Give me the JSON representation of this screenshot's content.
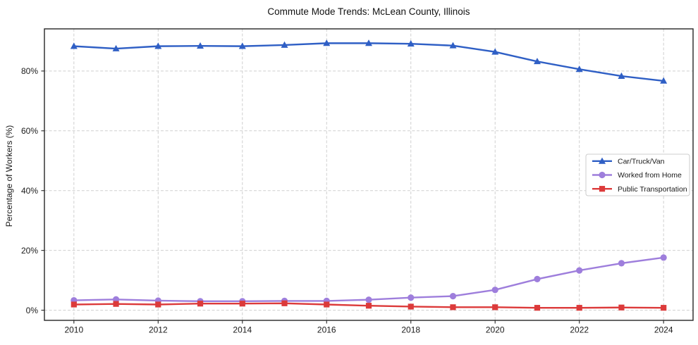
{
  "chart_data": {
    "type": "line",
    "title": "Commute Mode Trends: McLean County, Illinois",
    "xlabel": "",
    "ylabel": "Percentage of Workers (%)",
    "x": [
      2010,
      2011,
      2012,
      2013,
      2014,
      2015,
      2016,
      2017,
      2018,
      2019,
      2020,
      2021,
      2022,
      2023,
      2024
    ],
    "series": [
      {
        "name": "Car/Truck/Van",
        "color": "#2f5fc5",
        "marker": "triangle",
        "values": [
          88.3,
          87.5,
          88.3,
          88.4,
          88.3,
          88.7,
          89.3,
          89.3,
          89.1,
          88.5,
          86.4,
          83.2,
          80.6,
          78.3,
          76.7
        ]
      },
      {
        "name": "Worked from Home",
        "color": "#9e7edc",
        "marker": "circle",
        "values": [
          3.3,
          3.6,
          3.2,
          3.0,
          3.0,
          3.1,
          3.1,
          3.5,
          4.2,
          4.7,
          6.8,
          10.4,
          13.3,
          15.7,
          17.6
        ]
      },
      {
        "name": "Public Transportation",
        "color": "#dc3a3a",
        "marker": "square",
        "values": [
          1.9,
          2.1,
          1.9,
          2.2,
          2.2,
          2.3,
          1.9,
          1.5,
          1.2,
          1.0,
          1.0,
          0.8,
          0.8,
          0.9,
          0.8
        ]
      }
    ],
    "xtick_labels": [
      "2010",
      "2012",
      "2014",
      "2016",
      "2018",
      "2020",
      "2022",
      "2024"
    ],
    "ytick_labels": [
      "0%",
      "20%",
      "40%",
      "60%",
      "80%"
    ],
    "xlim": [
      2009.3,
      2024.7
    ],
    "ylim": [
      -3.4,
      94.1
    ],
    "grid": true,
    "grid_style": "dashed",
    "legend_position": "center right",
    "legend_entries": [
      "Car/Truck/Van",
      "Worked from Home",
      "Public Transportation"
    ]
  }
}
